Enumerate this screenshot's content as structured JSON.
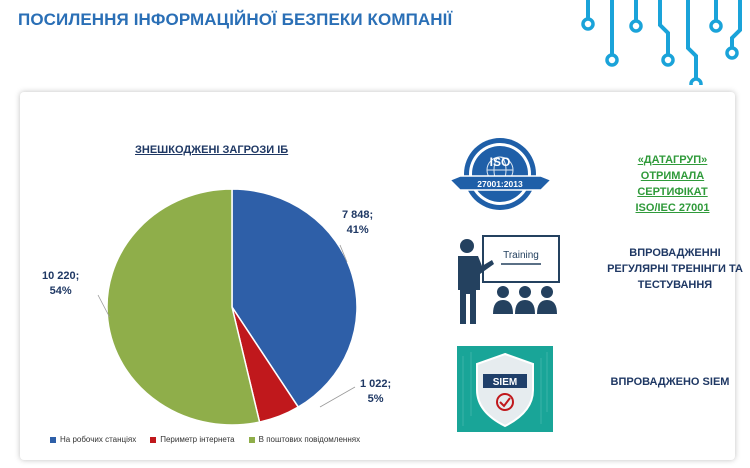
{
  "header": {
    "title": "ПОСИЛЕННЯ ІНФОРМАЦІЙНОЇ БЕЗПЕКИ КОМПАНІЇ"
  },
  "colors": {
    "accent": "#2a6fb6",
    "circuit": "#1aa3d9",
    "green_text": "#2f9a3a",
    "navy": "#1f3864"
  },
  "chart_data": {
    "type": "pie",
    "title": "ЗНЕШКОДЖЕНІ ЗАГРОЗИ ІБ",
    "slices": [
      {
        "name": "На робочих станціях",
        "value": 7848,
        "label": "7 848;",
        "percent": "41%",
        "color": "#2e5fa8"
      },
      {
        "name": "Периметр інтернета",
        "value": 1022,
        "label": "1 022;",
        "percent": "5%",
        "color": "#c0181c"
      },
      {
        "name": "В поштових повідомленнях",
        "value": 10220,
        "label": "10 220;",
        "percent": "54%",
        "color": "#8fae4a"
      }
    ],
    "legend_position": "bottom"
  },
  "iso": {
    "badge_top": "ISO",
    "badge_code": "27001:2013",
    "line1": "«ДАТАГРУП»",
    "line2": "ОТРИМАЛА СЕРТИФІКАТ",
    "line3": "ISO/IEC 27001",
    "icon": "iso-certificate-icon"
  },
  "training": {
    "board_label": "Training",
    "line1": "ВПРОВАДЖЕННІ",
    "line2": "РЕГУЛЯРНІ ТРЕНІНГИ ТА",
    "line3": "ТЕСТУВАННЯ",
    "icon": "training-presentation-icon"
  },
  "siem": {
    "badge_label": "SIEM",
    "text": "ВПРОВАДЖЕНО SIEM",
    "icon": "siem-shield-icon"
  }
}
